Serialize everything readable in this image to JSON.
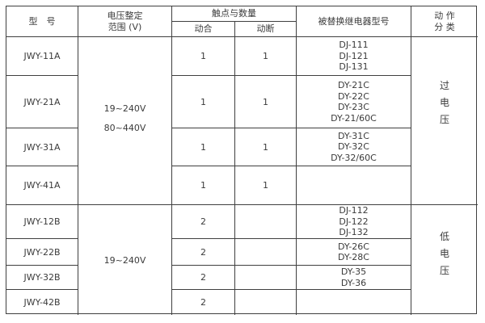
{
  "table": {
    "title_semantic": "relay-replacement-spec-table",
    "colors": {
      "border": "#3f3f3f",
      "text": "#3b3b3b",
      "background": "#ffffff"
    },
    "headers": {
      "model": "型　号",
      "voltage": "电压整定\n范围 (V)",
      "contacts": "触点与数量",
      "normally_open": "动合",
      "normally_closed": "动断",
      "replaced_relay": "被替换继电器型号",
      "action_class": "动 作\n分 类"
    },
    "rows": [
      {
        "model": "JWY-11A",
        "no": "1",
        "nc": "1",
        "replaced": "DJ-111\nDJ-121\nDJ-131"
      },
      {
        "model": "JWY-21A",
        "no": "1",
        "nc": "1",
        "replaced": "DY-21C\nDY-22C\nDY-23C\nDY-21/60C"
      },
      {
        "model": "JWY-31A",
        "no": "1",
        "nc": "1",
        "replaced": "DY-31C\nDY-32C\nDY-32/60C"
      },
      {
        "model": "JWY-41A",
        "no": "1",
        "nc": "1",
        "replaced": ""
      },
      {
        "model": "JWY-12B",
        "no": "2",
        "nc": "",
        "replaced": "DJ-112\nDJ-122\nDJ-132"
      },
      {
        "model": "JWY-22B",
        "no": "2",
        "nc": "",
        "replaced": "DY-26C\nDY-28C"
      },
      {
        "model": "JWY-32B",
        "no": "2",
        "nc": "",
        "replaced": "DY-35\nDY-36"
      },
      {
        "model": "JWY-42B",
        "no": "2",
        "nc": "",
        "replaced": ""
      }
    ],
    "merged": {
      "voltage_a": "19~240V\n80~440V",
      "voltage_b": "19~240V",
      "action_a": "过\n电\n压",
      "action_b": "低\n电\n压"
    }
  }
}
